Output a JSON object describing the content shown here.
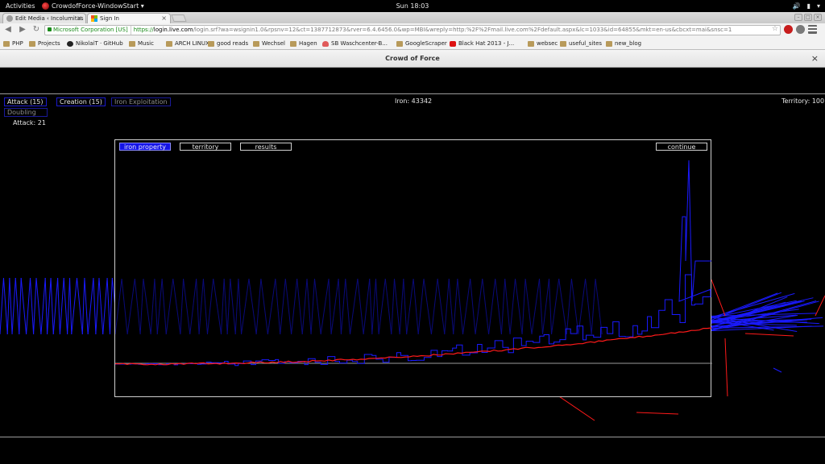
{
  "topbar": {
    "activities": "Activities",
    "app_name": "CrowdofForce-WindowStart",
    "clock": "Sun 18:03"
  },
  "browser": {
    "tabs": [
      {
        "label": "Edit Media ‹ Incolumitas –"
      },
      {
        "label": "Sign In"
      }
    ],
    "omnibox": {
      "ev_label": "Microsoft Corporation [US]",
      "url_scheme": "https://",
      "url_host": "login.live.com",
      "url_path": "/login.srf?wa=wsignin1.0&rpsnv=12&ct=1387712873&rver=6.4.6456.0&wp=MBI&wreply=http:%2F%2Fmail.live.com%2Fdefault.aspx&lc=1033&id=64855&mkt=en-us&cbcxt=mai&snsc=1"
    },
    "bookmarks": [
      {
        "label": "PHP",
        "icon": "folder"
      },
      {
        "label": "Projects",
        "icon": "folder"
      },
      {
        "label": "NikolaiT · GitHub",
        "icon": "gh"
      },
      {
        "label": "Music",
        "icon": "folder"
      },
      {
        "label": "ARCH LINUX",
        "icon": "folder"
      },
      {
        "label": "good reads",
        "icon": "folder"
      },
      {
        "label": "Wechsel",
        "icon": "folder"
      },
      {
        "label": "Hagen",
        "icon": "folder"
      },
      {
        "label": "SB Waschcenter-B...",
        "icon": "heart"
      },
      {
        "label": "GoogleScraper",
        "icon": "folder"
      },
      {
        "label": "Black Hat 2013 - J...",
        "icon": "yt"
      },
      {
        "label": "websec",
        "icon": "folder"
      },
      {
        "label": "useful_sites",
        "icon": "folder"
      },
      {
        "label": "new_blog",
        "icon": "folder"
      }
    ]
  },
  "game": {
    "window_title": "Crowd of Force",
    "hud": {
      "attack_button": "Attack (15)",
      "creation_button": "Creation (15)",
      "iron_exploitation_button": "Iron Exploitation",
      "doubling_button": "Doubling",
      "attack_value": "Attack: 21",
      "iron_label": "Iron: 43342",
      "territory_label": "Territory: 100"
    },
    "panel": {
      "tabs": [
        "iron property",
        "territory",
        "results"
      ],
      "active_tab": "iron property",
      "continue_label": "continue"
    },
    "colors": {
      "player_series": "#1a1aff",
      "opponent_series": "#ff1a1a",
      "active_tab": "#1414e6"
    }
  }
}
